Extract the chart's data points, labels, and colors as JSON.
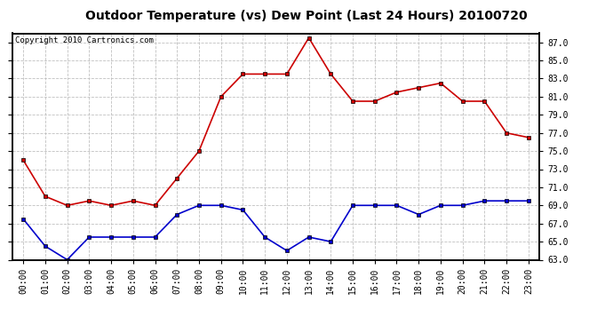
{
  "title": "Outdoor Temperature (vs) Dew Point (Last 24 Hours) 20100720",
  "copyright": "Copyright 2010 Cartronics.com",
  "hours": [
    "00:00",
    "01:00",
    "02:00",
    "03:00",
    "04:00",
    "05:00",
    "06:00",
    "07:00",
    "08:00",
    "09:00",
    "10:00",
    "11:00",
    "12:00",
    "13:00",
    "14:00",
    "15:00",
    "16:00",
    "17:00",
    "18:00",
    "19:00",
    "20:00",
    "21:00",
    "22:00",
    "23:00"
  ],
  "temp": [
    74.0,
    70.0,
    69.0,
    69.5,
    69.0,
    69.5,
    69.0,
    72.0,
    75.0,
    81.0,
    83.5,
    83.5,
    83.5,
    87.5,
    83.5,
    80.5,
    80.5,
    81.5,
    82.0,
    82.5,
    80.5,
    80.5,
    77.0,
    76.5
  ],
  "dew": [
    67.5,
    64.5,
    63.0,
    65.5,
    65.5,
    65.5,
    65.5,
    68.0,
    69.0,
    69.0,
    68.5,
    65.5,
    64.0,
    65.5,
    65.0,
    69.0,
    69.0,
    69.0,
    68.0,
    69.0,
    69.0,
    69.5,
    69.5,
    69.5
  ],
  "temp_color": "#cc0000",
  "dew_color": "#0000cc",
  "bg_color": "#ffffff",
  "grid_color": "#c0c0c0",
  "ylim_min": 63.0,
  "ylim_max": 88.0,
  "yticks": [
    63.0,
    65.0,
    67.0,
    69.0,
    71.0,
    73.0,
    75.0,
    77.0,
    79.0,
    81.0,
    83.0,
    85.0,
    87.0
  ],
  "title_fontsize": 10,
  "copyright_fontsize": 6.5,
  "tick_fontsize": 7
}
